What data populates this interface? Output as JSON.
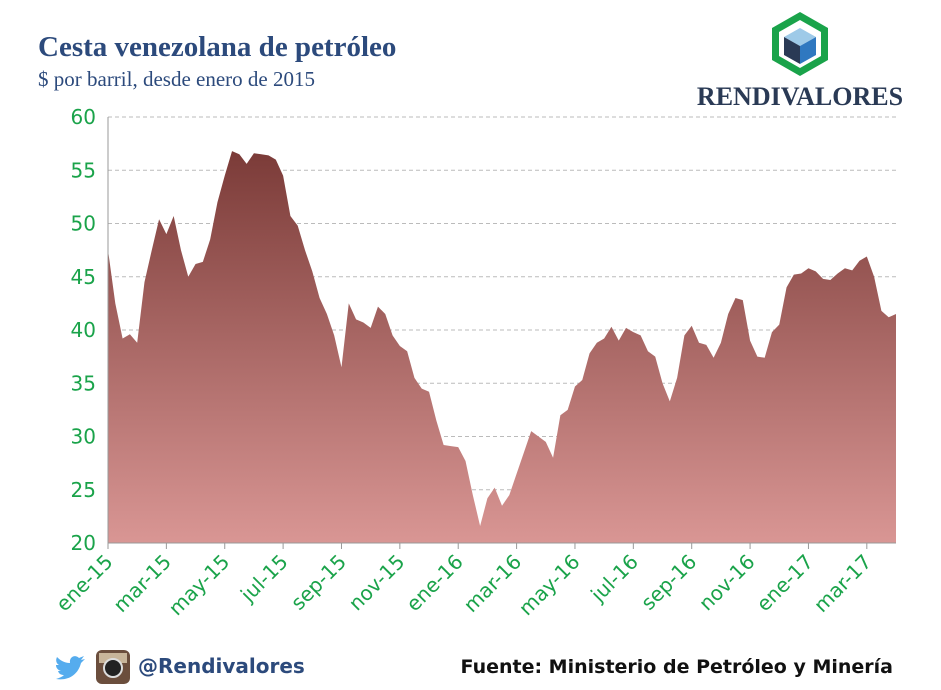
{
  "chart_data": {
    "type": "area",
    "title": "Cesta venezolana de petróleo",
    "subtitle": "$ por barril, desde enero de 2015",
    "brand": "RENDIVALORES",
    "handle": "@Rendivalores",
    "source": "Fuente: Ministerio de Petróleo y Minería",
    "categories": [
      "ene-15",
      null,
      null,
      null,
      null,
      null,
      null,
      null,
      "mar-15",
      null,
      null,
      null,
      null,
      null,
      null,
      null,
      "may-15",
      null,
      null,
      null,
      null,
      null,
      null,
      null,
      "jul-15",
      null,
      null,
      null,
      null,
      null,
      null,
      null,
      "sep-15",
      null,
      null,
      null,
      null,
      null,
      null,
      null,
      "nov-15",
      null,
      null,
      null,
      null,
      null,
      null,
      null,
      "ene-16",
      null,
      null,
      null,
      null,
      null,
      null,
      null,
      "mar-16",
      null,
      null,
      null,
      null,
      null,
      null,
      null,
      "may-16",
      null,
      null,
      null,
      null,
      null,
      null,
      null,
      "jul-16",
      null,
      null,
      null,
      null,
      null,
      null,
      null,
      "sep-16",
      null,
      null,
      null,
      null,
      null,
      null,
      null,
      "nov-16",
      null,
      null,
      null,
      null,
      null,
      null,
      null,
      "ene-17",
      null,
      null,
      null,
      null,
      null,
      null,
      null,
      "mar-17",
      null,
      null,
      null,
      null
    ],
    "values": [
      47.5,
      42.5,
      39.2,
      39.6,
      38.8,
      44.5,
      47.5,
      50.4,
      49,
      50.7,
      47.5,
      45,
      46.2,
      46.4,
      48.5,
      52,
      54.5,
      56.8,
      56.5,
      55.6,
      56.6,
      56.5,
      56.4,
      56,
      54.5,
      50.7,
      49.8,
      47.5,
      45.5,
      43,
      41.5,
      39.5,
      36.5,
      42.5,
      41,
      40.7,
      40.2,
      42.2,
      41.5,
      39.5,
      38.5,
      38,
      35.5,
      34.5,
      34.2,
      31.5,
      29.2,
      29.1,
      29,
      27.7,
      24.5,
      21.6,
      24.2,
      25.2,
      23.5,
      24.5,
      26.5,
      28.5,
      30.5,
      30,
      29.5,
      28,
      32,
      32.5,
      34.7,
      35.3,
      37.8,
      38.8,
      39.2,
      40.3,
      39,
      40.2,
      39.8,
      39.5,
      38,
      37.5,
      35,
      33.3,
      35.5,
      39.5,
      40.4,
      38.8,
      38.6,
      37.4,
      38.8,
      41.5,
      43,
      42.8,
      39,
      37.5,
      37.4,
      39.8,
      40.5,
      44,
      45.2,
      45.3,
      45.8,
      45.5,
      44.8,
      44.7,
      45.3,
      45.8,
      45.6,
      46.5,
      46.9,
      45,
      41.8,
      41.2,
      41.5
    ],
    "color_top": "#7b3b38",
    "color_bottom": "#d99694",
    "ylim": [
      20,
      60
    ],
    "yticks": [
      20,
      25,
      30,
      35,
      40,
      45,
      50,
      55,
      60
    ],
    "grid": true
  }
}
